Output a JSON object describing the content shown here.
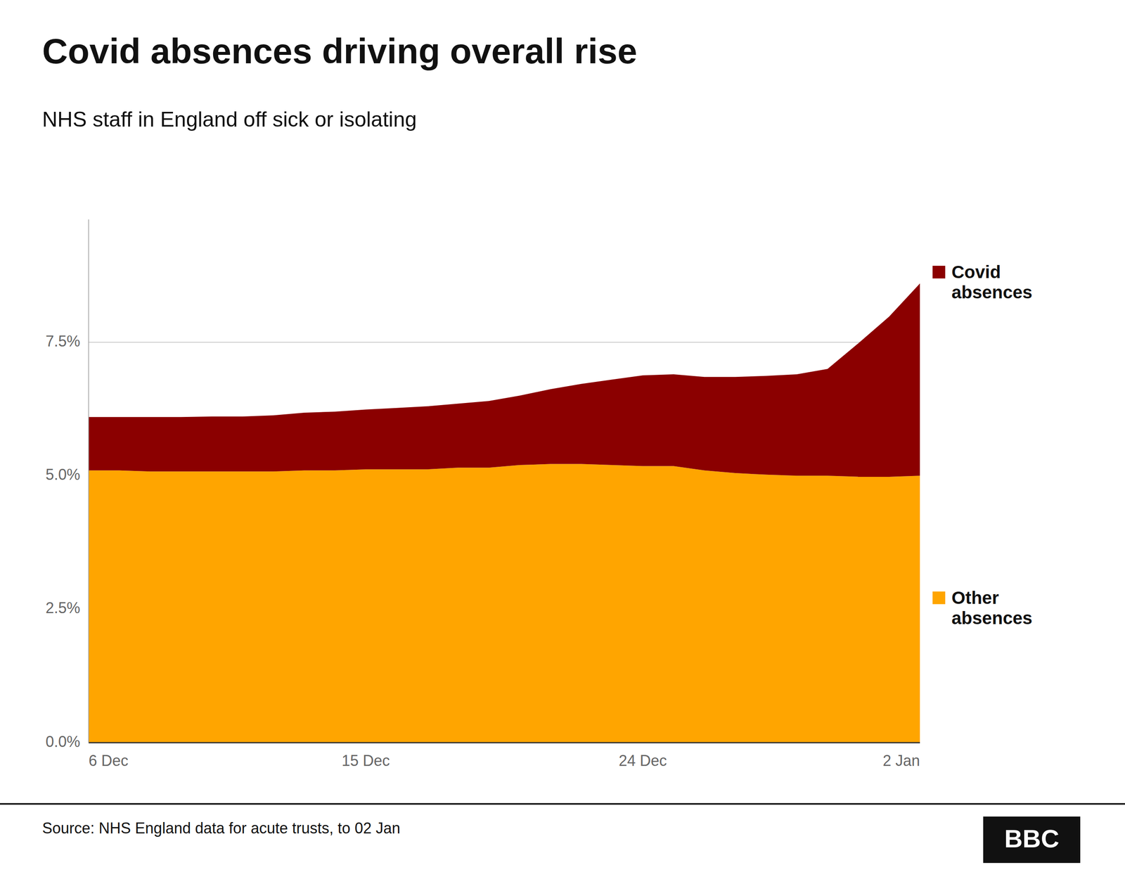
{
  "chart_data": {
    "type": "area",
    "stacked": true,
    "title": "Covid absences driving overall rise",
    "subtitle": "NHS staff in England off sick or isolating",
    "source": "Source: NHS England data for acute trusts, to 02 Jan",
    "annotations": [
      "BBC"
    ],
    "categories": [
      "6 Dec",
      null,
      null,
      null,
      null,
      null,
      null,
      null,
      null,
      "15 Dec",
      null,
      null,
      null,
      null,
      null,
      null,
      null,
      null,
      "24 Dec",
      null,
      null,
      null,
      null,
      null,
      null,
      null,
      null,
      "2 Jan"
    ],
    "series": [
      {
        "name": "Other\nabsences",
        "color": "#FFA500",
        "values": [
          5.1,
          5.1,
          5.08,
          5.08,
          5.08,
          5.08,
          5.08,
          5.1,
          5.1,
          5.12,
          5.12,
          5.12,
          5.15,
          5.15,
          5.2,
          5.22,
          5.22,
          5.2,
          5.18,
          5.18,
          5.1,
          5.05,
          5.02,
          5.0,
          5.0,
          4.98,
          4.98,
          5.0
        ]
      },
      {
        "name": "Covid\nabsences",
        "color": "#8B0000",
        "values": [
          1.0,
          1.0,
          1.02,
          1.02,
          1.03,
          1.03,
          1.05,
          1.08,
          1.1,
          1.12,
          1.15,
          1.18,
          1.2,
          1.25,
          1.3,
          1.4,
          1.5,
          1.6,
          1.7,
          1.72,
          1.75,
          1.8,
          1.85,
          1.9,
          2.0,
          2.5,
          3.0,
          3.6
        ]
      }
    ],
    "ylim": [
      0.0,
      9.8
    ],
    "yticks": [
      {
        "value": 0.0,
        "label": "0.0%"
      },
      {
        "value": 2.5,
        "label": "2.5%"
      },
      {
        "value": 5.0,
        "label": "5.0%"
      },
      {
        "value": 7.5,
        "label": "7.5%"
      }
    ],
    "grid": true
  }
}
